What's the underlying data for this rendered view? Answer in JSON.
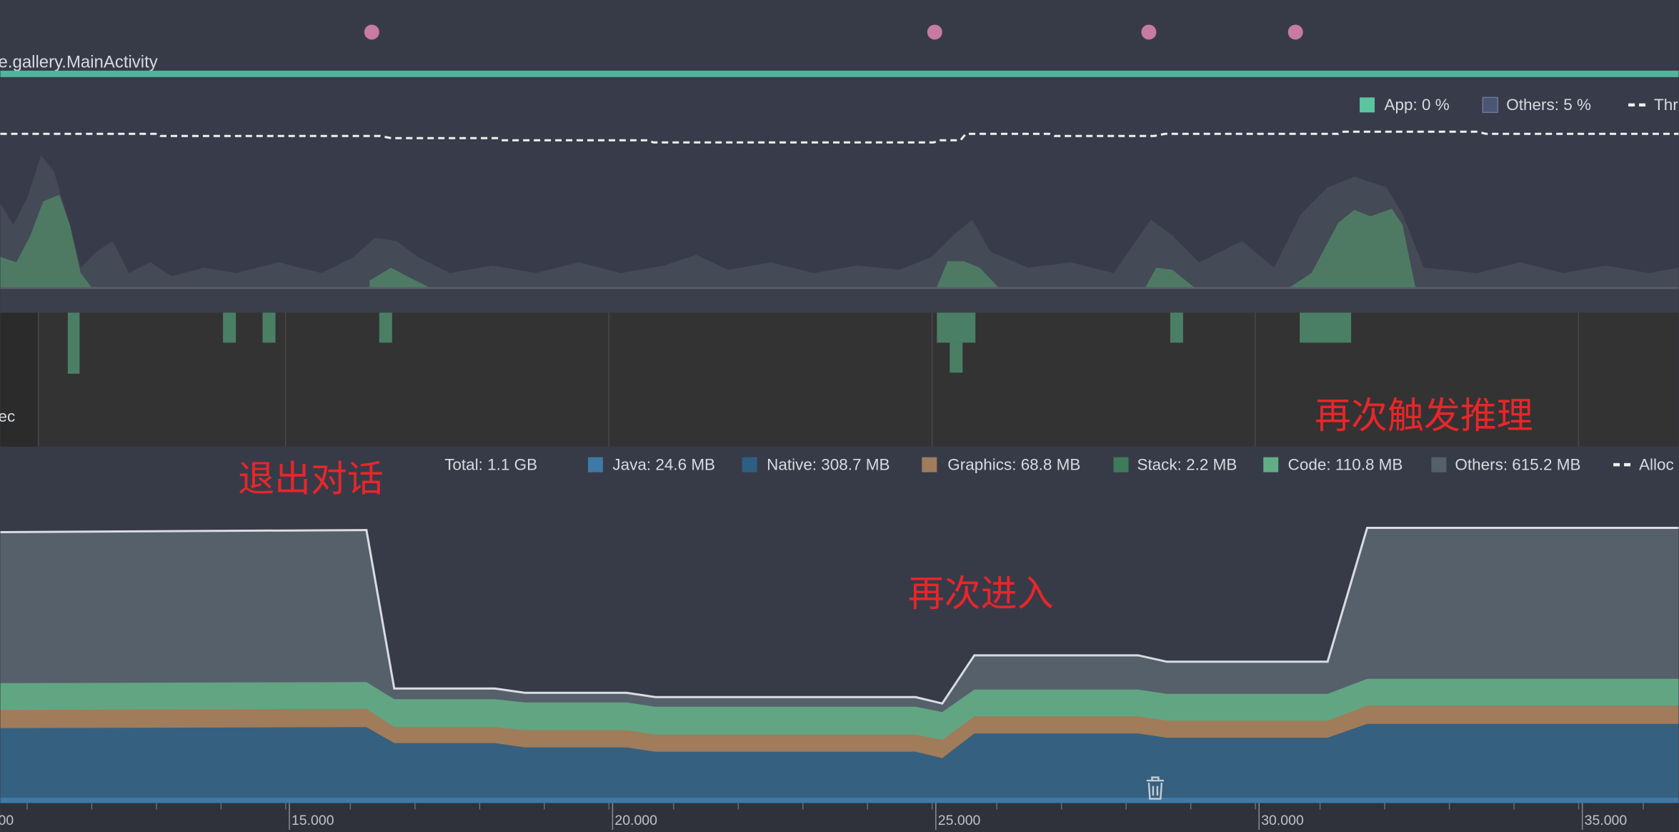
{
  "events_track": {
    "activity": "e.gallery.MainActivity"
  },
  "cpu": {
    "legend": [
      "App: 0 %",
      "Others: 5 %",
      "Thr"
    ]
  },
  "threads": {
    "label": "ec"
  },
  "memory": {
    "total": "Total: 1.1 GB",
    "legend": [
      "Java: 24.6 MB",
      "Native: 308.7 MB",
      "Graphics: 68.8 MB",
      "Stack: 2.2 MB",
      "Code: 110.8 MB",
      "Others: 615.2 MB",
      "Alloc"
    ]
  },
  "annotations": [
    "退出对话",
    "再次进入",
    "再次触发推理"
  ],
  "time_axis": {
    "ticks": [
      "00",
      "15.000",
      "20.000",
      "25.000",
      "30.000",
      "35.000"
    ]
  }
}
